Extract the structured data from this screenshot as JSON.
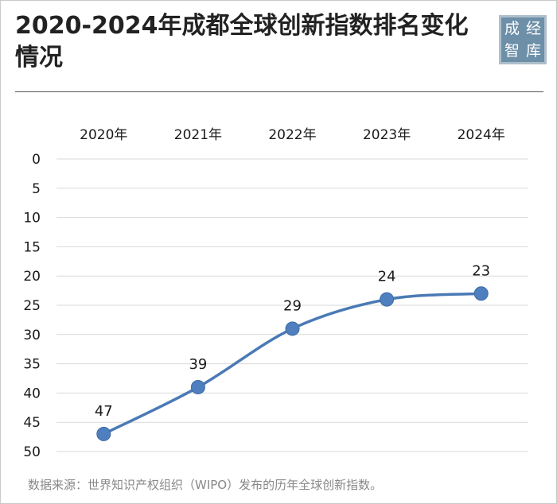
{
  "header": {
    "title": "2020-2024年成都全球创新指数排名变化情况",
    "logo_chars": [
      "成",
      "经",
      "智",
      "库"
    ]
  },
  "footer": {
    "source": "数据来源：世界知识产权组织（WIPO）发布的历年全球创新指数。"
  },
  "chart_data": {
    "type": "line",
    "title": "2020-2024年成都全球创新指数排名变化情况",
    "categories": [
      "2020年",
      "2021年",
      "2022年",
      "2023年",
      "2024年"
    ],
    "series": [
      {
        "values": [
          47,
          39,
          29,
          24,
          23
        ]
      }
    ],
    "ylim": [
      0,
      50
    ],
    "yticks": [
      0,
      5,
      10,
      15,
      20,
      25,
      30,
      35,
      40,
      45,
      50
    ],
    "y_inverted": true,
    "x_axis_position": "top",
    "grid": true,
    "smooth": true,
    "data_labels": true,
    "colors": {
      "line": "#4a7ab5",
      "marker": "#4f7fbf",
      "grid": "#d9d9d9"
    }
  }
}
